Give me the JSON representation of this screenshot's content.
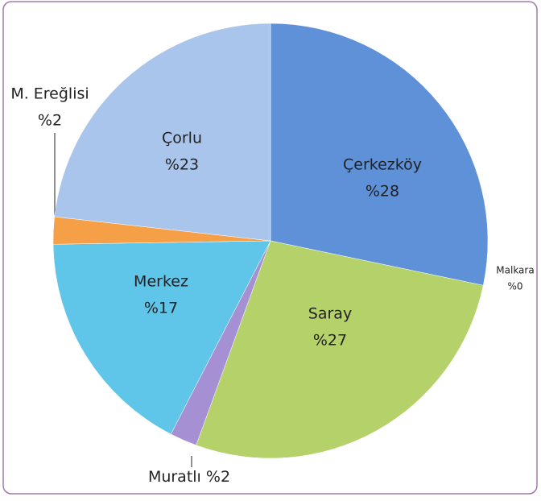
{
  "chart_data": {
    "type": "pie",
    "categories": [
      "Çerkezköy",
      "Malkara",
      "Saray",
      "Muratlı",
      "Merkez",
      "M. Ereğlisi",
      "Çorlu"
    ],
    "values": [
      28,
      0,
      27,
      2,
      17,
      2,
      23
    ],
    "value_labels": [
      "%28",
      "%0",
      "%27",
      "%2",
      "%17",
      "%2",
      "%23"
    ],
    "colors": [
      "#5e91d8",
      "#c0504d",
      "#b4d16a",
      "#a490d2",
      "#5fc6ea",
      "#f5a047",
      "#aac5ec"
    ]
  }
}
